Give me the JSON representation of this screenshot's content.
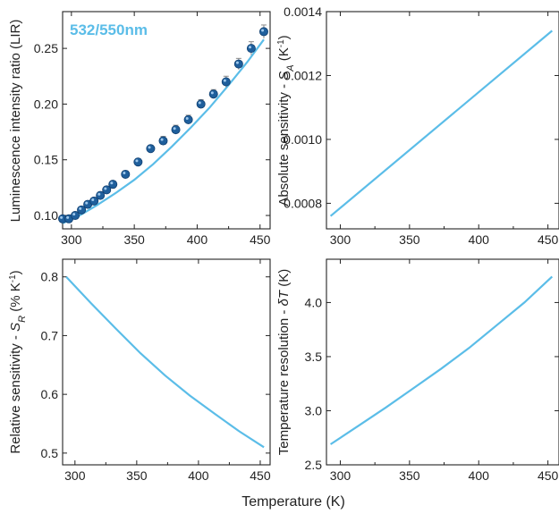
{
  "figure": {
    "xlabel": "Temperature (K)"
  },
  "colors": {
    "curve": "#5bbde8",
    "marker": "#1f5f9c",
    "errorbar": "#8a8a8a",
    "annotation": "#5bbde8"
  },
  "chart_data": [
    {
      "type": "scatter",
      "annotation": "532/550nm",
      "ylabel": "Luminescence intensity ratio (LIR)",
      "xlim": [
        293,
        458
      ],
      "ylim": [
        0.088,
        0.283
      ],
      "xticks": [
        300,
        350,
        400,
        450
      ],
      "xtick_labels": [
        "300",
        "350",
        "400",
        "450"
      ],
      "yticks": [
        0.1,
        0.15,
        0.2,
        0.25
      ],
      "ytick_labels": [
        "0.10",
        "0.15",
        "0.20",
        "0.25"
      ],
      "series": [
        {
          "kind": "scatter",
          "x": [
            293,
            298,
            303,
            308,
            313,
            318,
            323,
            328,
            333,
            343,
            353,
            363,
            373,
            383,
            393,
            403,
            413,
            423,
            433,
            443,
            453
          ],
          "y": [
            0.097,
            0.097,
            0.1,
            0.105,
            0.11,
            0.113,
            0.118,
            0.123,
            0.128,
            0.137,
            0.148,
            0.16,
            0.167,
            0.177,
            0.186,
            0.2,
            0.209,
            0.22,
            0.236,
            0.25,
            0.265
          ],
          "yerr": [
            0.002,
            0.002,
            0.002,
            0.002,
            0.002,
            0.002,
            0.003,
            0.003,
            0.003,
            0.003,
            0.003,
            0.003,
            0.004,
            0.004,
            0.004,
            0.004,
            0.004,
            0.005,
            0.005,
            0.006,
            0.006
          ]
        },
        {
          "kind": "line",
          "x": [
            293,
            305,
            320,
            335,
            350,
            365,
            380,
            395,
            410,
            425,
            440,
            453
          ],
          "y": [
            0.093,
            0.099,
            0.109,
            0.12,
            0.132,
            0.146,
            0.162,
            0.179,
            0.197,
            0.217,
            0.238,
            0.258
          ]
        }
      ]
    },
    {
      "type": "line",
      "ylabel": "Absolute sensitivity - S_A (K^-1)",
      "xlim": [
        290,
        458
      ],
      "ylim": [
        0.00072,
        0.0014
      ],
      "xticks": [
        300,
        350,
        400,
        450
      ],
      "xtick_labels": [
        "300",
        "350",
        "400",
        "450"
      ],
      "yticks": [
        0.0008,
        0.001,
        0.0012,
        0.0014
      ],
      "ytick_labels": [
        "0.0008",
        "0.0010",
        "0.0012",
        "0.0014"
      ],
      "series": [
        {
          "kind": "line",
          "x": [
            293,
            453
          ],
          "y": [
            0.00076,
            0.00134
          ]
        }
      ]
    },
    {
      "type": "line",
      "ylabel": "Relative sensitivity - S_R (% K^-1)",
      "xlim": [
        290,
        458
      ],
      "ylim": [
        0.48,
        0.83
      ],
      "xticks": [
        300,
        350,
        400,
        450
      ],
      "xtick_labels": [
        "300",
        "350",
        "400",
        "450"
      ],
      "yticks": [
        0.5,
        0.6,
        0.7,
        0.8
      ],
      "ytick_labels": [
        "0.5",
        "0.6",
        "0.7",
        "0.8"
      ],
      "series": [
        {
          "kind": "line",
          "x": [
            293,
            313,
            333,
            353,
            373,
            393,
            413,
            433,
            453
          ],
          "y": [
            0.8,
            0.755,
            0.712,
            0.67,
            0.632,
            0.598,
            0.567,
            0.537,
            0.51
          ]
        }
      ]
    },
    {
      "type": "line",
      "ylabel": "Temperature resolution - δT (K)",
      "xlim": [
        290,
        458
      ],
      "ylim": [
        2.5,
        4.4
      ],
      "xticks": [
        300,
        350,
        400,
        450
      ],
      "xtick_labels": [
        "300",
        "350",
        "400",
        "450"
      ],
      "yticks": [
        2.5,
        3.0,
        3.5,
        4.0
      ],
      "ytick_labels": [
        "2.5",
        "3.0",
        "3.5",
        "4.0"
      ],
      "series": [
        {
          "kind": "line",
          "x": [
            293,
            313,
            333,
            353,
            373,
            393,
            413,
            433,
            453
          ],
          "y": [
            2.69,
            2.86,
            3.03,
            3.21,
            3.39,
            3.58,
            3.79,
            4.0,
            4.24
          ]
        }
      ]
    }
  ]
}
